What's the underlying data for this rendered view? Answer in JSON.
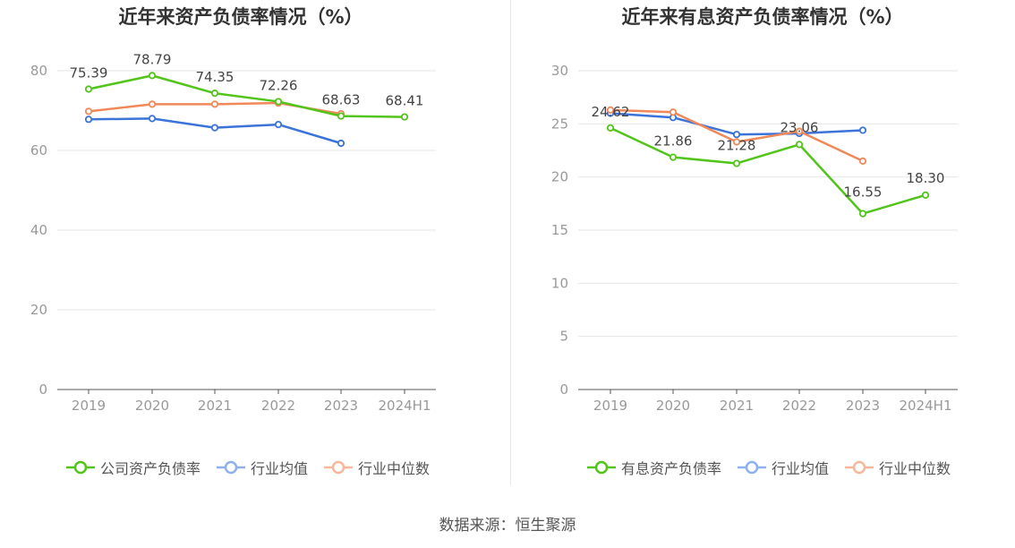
{
  "source_label": "数据来源：恒生聚源",
  "colors": {
    "company": "#52c41a",
    "avg": "#3b73d8",
    "median": "#f0885a",
    "avg_legend": "#8fb0ef",
    "median_legend": "#f6b79b",
    "axis_text": "#999999",
    "grid": "#e6e6e6",
    "label": "#444444",
    "title": "#333333"
  },
  "chart_data": [
    {
      "type": "line",
      "title": "近年来资产负债率情况（%）",
      "categories": [
        "2019",
        "2020",
        "2021",
        "2022",
        "2023",
        "2024H1"
      ],
      "ylim": [
        0,
        90
      ],
      "yticks": [
        0,
        20,
        40,
        60,
        80
      ],
      "grid": true,
      "legend_position": "bottom",
      "series": [
        {
          "name": "公司资产负债率",
          "color_key": "company",
          "labeled": true,
          "values": [
            75.39,
            78.79,
            74.35,
            72.26,
            68.63,
            68.41
          ]
        },
        {
          "name": "行业均值",
          "color_key": "avg",
          "labeled": false,
          "values": [
            67.8,
            68.0,
            65.7,
            66.5,
            61.8,
            null
          ]
        },
        {
          "name": "行业中位数",
          "color_key": "median",
          "labeled": false,
          "values": [
            69.8,
            71.6,
            71.6,
            71.9,
            69.2,
            null
          ]
        }
      ]
    },
    {
      "type": "line",
      "title": "近年来有息资产负债率情况（%）",
      "categories": [
        "2019",
        "2020",
        "2021",
        "2022",
        "2023",
        "2024H1"
      ],
      "ylim": [
        0,
        30
      ],
      "yticks": [
        0,
        5,
        10,
        15,
        20,
        25,
        30
      ],
      "grid": true,
      "legend_position": "bottom",
      "series": [
        {
          "name": "有息资产负债率",
          "color_key": "company",
          "labeled": true,
          "values": [
            24.62,
            21.86,
            21.28,
            23.06,
            16.55,
            18.3
          ]
        },
        {
          "name": "行业均值",
          "color_key": "avg",
          "labeled": false,
          "values": [
            26.0,
            25.6,
            24.0,
            24.1,
            24.4,
            null
          ]
        },
        {
          "name": "行业中位数",
          "color_key": "median",
          "labeled": false,
          "values": [
            26.3,
            26.1,
            23.3,
            24.3,
            21.5,
            null
          ]
        }
      ]
    }
  ]
}
